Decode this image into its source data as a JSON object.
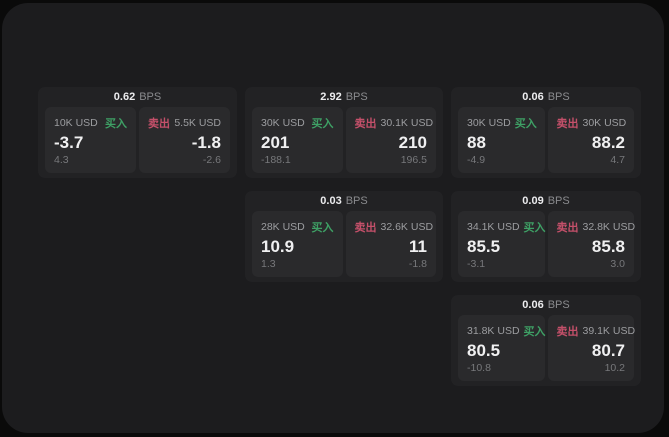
{
  "labels": {
    "bps_unit": "BPS",
    "buy": "买入",
    "sell": "卖出"
  },
  "colors": {
    "buy": "#3ea065",
    "sell": "#c4506a",
    "window_bg": "#1c1c1e",
    "card_bg": "#222224",
    "panel_bg": "#2a2a2c"
  },
  "cards": [
    {
      "bps": "0.62",
      "grid": {
        "row": 1,
        "col": 1
      },
      "buy": {
        "size": "10K USD",
        "value": "-3.7",
        "delta": "4.3"
      },
      "sell": {
        "size": "5.5K USD",
        "value": "-1.8",
        "delta": "-2.6"
      }
    },
    {
      "bps": "2.92",
      "grid": {
        "row": 1,
        "col": 2
      },
      "buy": {
        "size": "30K USD",
        "value": "201",
        "delta": "-188.1"
      },
      "sell": {
        "size": "30.1K USD",
        "value": "210",
        "delta": "196.5"
      }
    },
    {
      "bps": "0.06",
      "grid": {
        "row": 1,
        "col": 3
      },
      "buy": {
        "size": "30K USD",
        "value": "88",
        "delta": "-4.9"
      },
      "sell": {
        "size": "30K USD",
        "value": "88.2",
        "delta": "4.7"
      }
    },
    {
      "bps": "0.03",
      "grid": {
        "row": 2,
        "col": 2
      },
      "buy": {
        "size": "28K USD",
        "value": "10.9",
        "delta": "1.3"
      },
      "sell": {
        "size": "32.6K USD",
        "value": "11",
        "delta": "-1.8"
      }
    },
    {
      "bps": "0.09",
      "grid": {
        "row": 2,
        "col": 3
      },
      "buy": {
        "size": "34.1K USD",
        "value": "85.5",
        "delta": "-3.1"
      },
      "sell": {
        "size": "32.8K USD",
        "value": "85.8",
        "delta": "3.0"
      }
    },
    {
      "bps": "0.06",
      "grid": {
        "row": 3,
        "col": 3
      },
      "buy": {
        "size": "31.8K USD",
        "value": "80.5",
        "delta": "-10.8"
      },
      "sell": {
        "size": "39.1K USD",
        "value": "80.7",
        "delta": "10.2"
      }
    }
  ]
}
